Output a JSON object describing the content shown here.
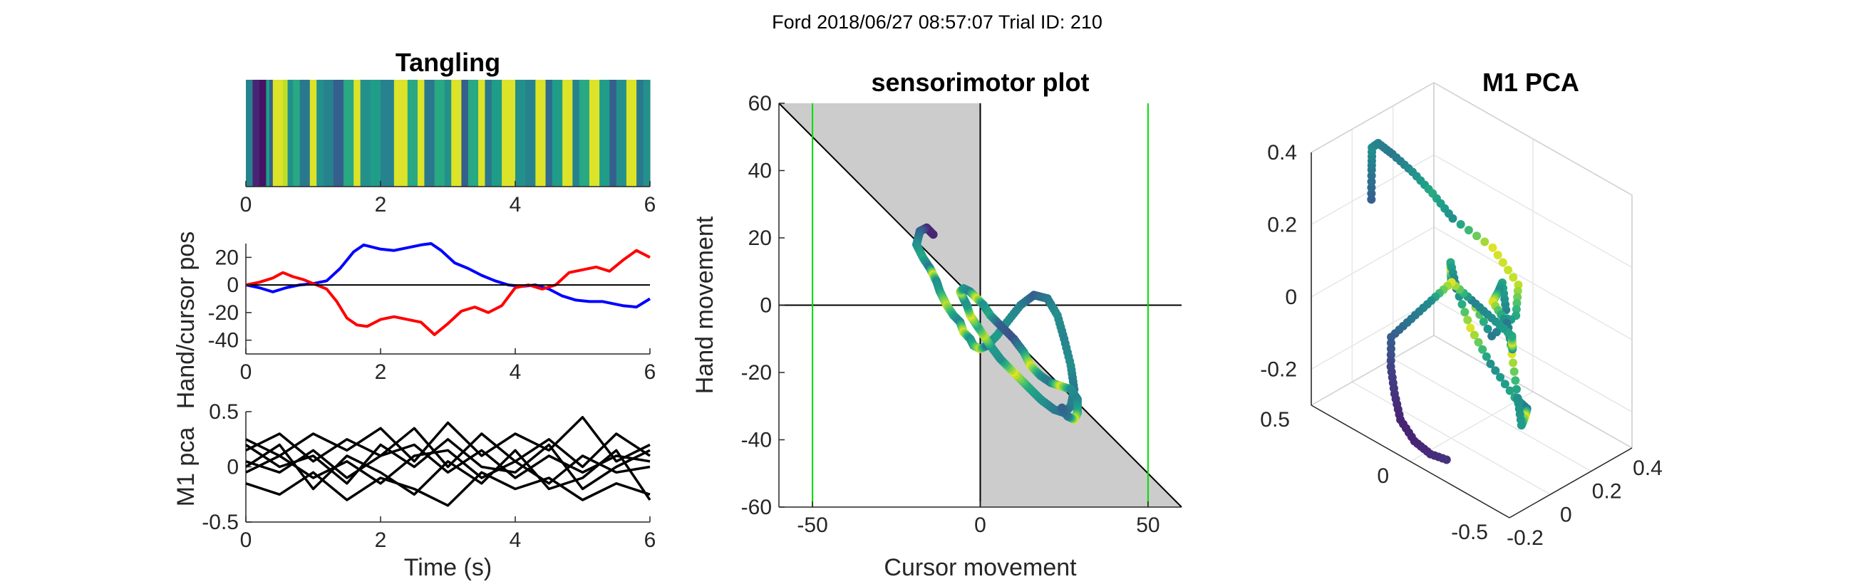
{
  "suptitle": "Ford 2018/06/27 08:57:07 Trial ID: 210",
  "chart_data": [
    {
      "id": "tangling",
      "type": "heatmap",
      "title": "Tangling",
      "xlim": [
        0,
        6
      ],
      "xticks": [
        0,
        2,
        4,
        6
      ],
      "colormap": "viridis",
      "bands_x": [
        0,
        0.1,
        0.2,
        0.3,
        0.35,
        0.4,
        0.55,
        0.62,
        0.7,
        0.8,
        0.95,
        1.05,
        1.15,
        1.3,
        1.45,
        1.6,
        1.7,
        1.85,
        2.0,
        2.2,
        2.4,
        2.55,
        2.65,
        2.8,
        2.95,
        3.05,
        3.2,
        3.3,
        3.45,
        3.55,
        3.65,
        3.8,
        4.0,
        4.15,
        4.3,
        4.45,
        4.55,
        4.7,
        4.85,
        4.95,
        5.1,
        5.25,
        5.4,
        5.5,
        5.65,
        5.8,
        5.9
      ],
      "band_values": [
        0.45,
        0.1,
        0.05,
        0.55,
        0.3,
        0.95,
        0.9,
        0.5,
        0.6,
        0.4,
        0.95,
        0.5,
        0.45,
        0.3,
        0.6,
        0.95,
        0.5,
        0.55,
        0.45,
        0.95,
        0.6,
        0.95,
        0.4,
        0.6,
        0.5,
        0.95,
        0.3,
        0.6,
        0.95,
        0.4,
        0.55,
        0.95,
        0.5,
        0.45,
        0.95,
        0.35,
        0.55,
        0.95,
        0.45,
        0.6,
        0.95,
        0.55,
        0.3,
        0.5,
        0.95,
        0.4,
        0.5
      ]
    },
    {
      "id": "hand-cursor",
      "type": "line",
      "title": "",
      "ylabel": "Hand/cursor pos",
      "xlim": [
        0,
        6
      ],
      "ylim": [
        -50,
        30
      ],
      "xticks": [
        0,
        2,
        4,
        6
      ],
      "yticks": [
        20,
        0,
        -20,
        -40
      ],
      "series": [
        {
          "color": "#0000ff",
          "x": [
            0,
            0.2,
            0.4,
            0.6,
            0.8,
            1.0,
            1.2,
            1.4,
            1.6,
            1.75,
            2.0,
            2.2,
            2.4,
            2.6,
            2.75,
            2.9,
            3.1,
            3.3,
            3.5,
            3.7,
            3.9,
            4.1,
            4.3,
            4.5,
            4.7,
            4.9,
            5.1,
            5.3,
            5.5,
            5.6,
            5.8,
            6.0
          ],
          "y": [
            0,
            -2,
            -5,
            -2,
            0,
            1,
            3,
            12,
            24,
            29,
            26,
            25,
            27,
            29,
            30,
            25,
            16,
            12,
            7,
            3,
            0,
            -1,
            0,
            -3,
            -8,
            -11,
            -12,
            -12,
            -14,
            -15,
            -16,
            -10
          ]
        },
        {
          "color": "#ff0000",
          "x": [
            0,
            0.2,
            0.4,
            0.55,
            0.7,
            0.85,
            1.0,
            1.2,
            1.35,
            1.5,
            1.65,
            1.8,
            2.0,
            2.2,
            2.4,
            2.6,
            2.8,
            3.0,
            3.2,
            3.4,
            3.6,
            3.8,
            4.0,
            4.2,
            4.4,
            4.6,
            4.8,
            5.0,
            5.2,
            5.4,
            5.6,
            5.8,
            6.0
          ],
          "y": [
            0,
            2,
            5,
            9,
            6,
            4,
            1,
            -3,
            -12,
            -24,
            -29,
            -30,
            -25,
            -23,
            -25,
            -27,
            -36,
            -28,
            -19,
            -16,
            -20,
            -15,
            -2,
            0,
            -3,
            0,
            9,
            11,
            13,
            10,
            18,
            25,
            20
          ]
        },
        {
          "color": "#000000",
          "x": [
            0,
            6
          ],
          "y": [
            0,
            0
          ]
        }
      ]
    },
    {
      "id": "m1-pca",
      "type": "line",
      "title": "",
      "xlabel": "Time (s)",
      "ylabel": "M1 pca",
      "xlim": [
        0,
        6
      ],
      "ylim": [
        -0.5,
        0.5
      ],
      "xticks": [
        0,
        2,
        4,
        6
      ],
      "yticks": [
        0.5,
        0,
        -0.5
      ],
      "series": [
        {
          "color": "#000000",
          "x": [
            0,
            0.5,
            1.0,
            1.5,
            2.0,
            2.5,
            3.0,
            3.5,
            4.0,
            4.5,
            5.0,
            5.5,
            6.0
          ],
          "y": [
            0.25,
            0.1,
            0.3,
            0.15,
            0.35,
            0.05,
            0.4,
            0.1,
            0.3,
            0.15,
            0.45,
            0.05,
            0.2
          ]
        },
        {
          "color": "#000000",
          "x": [
            0,
            0.5,
            1.0,
            1.5,
            2.0,
            2.5,
            3.0,
            3.5,
            4.0,
            4.5,
            5.0,
            5.5,
            6.0
          ],
          "y": [
            0.15,
            0.3,
            0.05,
            0.25,
            0.1,
            0.35,
            0.0,
            0.3,
            0.05,
            0.25,
            0.0,
            0.3,
            0.1
          ]
        },
        {
          "color": "#000000",
          "x": [
            0,
            0.5,
            1.0,
            1.5,
            2.0,
            2.5,
            3.0,
            3.5,
            4.0,
            4.5,
            5.0,
            5.5,
            6.0
          ],
          "y": [
            0.05,
            -0.05,
            0.15,
            -0.1,
            0.1,
            0.2,
            -0.05,
            0.15,
            -0.1,
            0.1,
            -0.05,
            0.1,
            0.05
          ]
        },
        {
          "color": "#000000",
          "x": [
            0,
            0.5,
            1.0,
            1.5,
            2.0,
            2.5,
            3.0,
            3.5,
            4.0,
            4.5,
            5.0,
            5.5,
            6.0
          ],
          "y": [
            -0.05,
            0.1,
            -0.1,
            0.05,
            -0.15,
            0.1,
            0.15,
            -0.1,
            0.05,
            -0.15,
            0.1,
            -0.05,
            0.0
          ]
        },
        {
          "color": "#000000",
          "x": [
            0,
            0.5,
            1.0,
            1.5,
            2.0,
            2.5,
            3.0,
            3.5,
            4.0,
            4.5,
            5.0,
            5.5,
            6.0
          ],
          "y": [
            -0.15,
            -0.25,
            -0.05,
            -0.3,
            -0.1,
            -0.2,
            -0.35,
            -0.05,
            -0.2,
            -0.1,
            -0.3,
            -0.15,
            -0.25
          ]
        },
        {
          "color": "#000000",
          "x": [
            0,
            0.5,
            1.0,
            1.5,
            2.0,
            2.5,
            3.0,
            3.5,
            4.0,
            4.5,
            5.0,
            5.5,
            6.0
          ],
          "y": [
            0.0,
            0.2,
            -0.2,
            0.1,
            -0.05,
            -0.25,
            0.05,
            -0.15,
            0.15,
            -0.2,
            -0.1,
            0.15,
            -0.3
          ]
        },
        {
          "color": "#000000",
          "x": [
            0,
            0.5,
            1.0,
            1.5,
            2.0,
            2.5,
            3.0,
            3.5,
            4.0,
            4.5,
            5.0,
            5.5,
            6.0
          ],
          "y": [
            0.2,
            0.0,
            0.1,
            -0.15,
            0.2,
            0.0,
            0.25,
            0.0,
            -0.05,
            0.2,
            -0.2,
            0.0,
            0.15
          ]
        }
      ]
    },
    {
      "id": "sensorimotor",
      "type": "scatter",
      "title": "sensorimotor plot",
      "xlabel": "Cursor movement",
      "ylabel": "Hand movement",
      "xlim": [
        -60,
        60
      ],
      "ylim": [
        -60,
        60
      ],
      "xticks": [
        -50,
        0,
        50
      ],
      "yticks": [
        60,
        40,
        20,
        0,
        -20,
        -40,
        -60
      ],
      "shaded_regions": [
        {
          "polygon": [
            [
              -60,
              60
            ],
            [
              0,
              60
            ],
            [
              0,
              0
            ]
          ],
          "color": "#cccccc"
        },
        {
          "polygon": [
            [
              0,
              0
            ],
            [
              0,
              -60
            ],
            [
              60,
              -60
            ]
          ],
          "color": "#cccccc"
        }
      ],
      "reference_lines": [
        {
          "x": [
            -60,
            60
          ],
          "y": [
            60,
            -60
          ],
          "color": "#000000"
        },
        {
          "x": [
            -60,
            60
          ],
          "y": [
            0,
            0
          ],
          "color": "#000000"
        },
        {
          "x": [
            0,
            0
          ],
          "y": [
            -60,
            60
          ],
          "color": "#000000"
        },
        {
          "x": [
            -50,
            -50
          ],
          "y": [
            -60,
            60
          ],
          "color": "#00dd00"
        },
        {
          "x": [
            50,
            50
          ],
          "y": [
            -60,
            60
          ],
          "color": "#00dd00"
        }
      ],
      "path_x": [
        -14,
        -16,
        -18,
        -19,
        -17,
        -15,
        -14,
        -13,
        -12,
        -10,
        -8,
        -6,
        -5,
        -3,
        -2,
        0,
        2,
        5,
        8,
        12,
        16,
        20,
        23,
        25,
        27,
        28,
        27,
        25,
        22,
        18,
        14,
        10,
        6,
        3,
        1,
        -1,
        -3,
        -4,
        -5,
        -6,
        -5,
        -3,
        -1,
        1,
        3,
        6,
        10,
        13,
        15,
        18,
        21,
        24,
        27,
        29,
        29,
        28,
        26,
        24
      ],
      "path_y": [
        21,
        23,
        22,
        18,
        14,
        11,
        9,
        7,
        4,
        0,
        -3,
        -5,
        -8,
        -10,
        -12,
        -13,
        -12,
        -9,
        -5,
        0,
        3,
        2,
        -3,
        -10,
        -18,
        -25,
        -30,
        -32,
        -31,
        -28,
        -24,
        -20,
        -16,
        -12,
        -9,
        -6,
        -3,
        0,
        2,
        4,
        5,
        4,
        2,
        0,
        -3,
        -6,
        -10,
        -14,
        -18,
        -21,
        -23,
        -24,
        -25,
        -28,
        -32,
        -34,
        -33,
        -30
      ],
      "path_color_values": [
        0.1,
        0.1,
        0.3,
        0.5,
        0.6,
        0.4,
        0.95,
        0.5,
        0.55,
        0.9,
        0.6,
        0.45,
        0.95,
        0.5,
        0.6,
        0.9,
        0.4,
        0.55,
        0.5,
        0.45,
        0.3,
        0.4,
        0.5,
        0.45,
        0.5,
        0.4,
        0.45,
        0.35,
        0.4,
        0.5,
        0.6,
        0.95,
        0.5,
        0.55,
        0.9,
        0.6,
        0.95,
        0.55,
        0.5,
        0.9,
        0.55,
        0.45,
        0.95,
        0.5,
        0.6,
        0.3,
        0.25,
        0.5,
        0.95,
        0.5,
        0.4,
        0.95,
        0.5,
        0.45,
        0.6,
        0.95,
        0.4,
        0.3
      ]
    },
    {
      "id": "m1-pca-3d",
      "type": "scatter",
      "title": "M1 PCA",
      "xlim": [
        -0.2,
        0.4
      ],
      "ylim": [
        -0.5,
        0.5
      ],
      "zlim": [
        -0.3,
        0.4
      ],
      "xticks": [
        -0.2,
        0,
        0.2,
        0.4
      ],
      "yticks": [
        -0.5,
        0,
        0.5
      ],
      "zticks": [
        0.4,
        0.2,
        0,
        -0.2
      ],
      "grid": true,
      "points_x": [
        -0.1,
        -0.05,
        0.0,
        0.05,
        0.1,
        0.15,
        0.2,
        0.25,
        0.3,
        0.28,
        0.22,
        0.15,
        0.1,
        0.05,
        0.0,
        -0.05,
        -0.1,
        -0.12,
        -0.1,
        -0.05,
        0.02,
        0.08,
        0.12,
        0.15,
        0.18,
        0.2,
        0.22,
        0.25,
        0.28,
        0.3,
        0.32,
        0.3,
        0.25,
        0.2,
        0.15,
        0.1,
        0.05,
        0.0,
        -0.05,
        -0.1,
        -0.15,
        -0.18,
        -0.2,
        -0.18,
        -0.15,
        -0.1
      ],
      "points_y": [
        0.3,
        0.35,
        0.4,
        0.42,
        0.4,
        0.35,
        0.3,
        0.25,
        0.1,
        -0.05,
        -0.1,
        -0.05,
        0.0,
        0.05,
        0.0,
        -0.05,
        -0.1,
        -0.15,
        -0.2,
        -0.25,
        -0.3,
        -0.3,
        -0.25,
        -0.2,
        -0.15,
        -0.1,
        -0.05,
        0.0,
        0.05,
        0.1,
        0.05,
        0.0,
        -0.05,
        -0.1,
        -0.05,
        0.0,
        0.05,
        0.1,
        0.15,
        0.2,
        0.15,
        0.1,
        0.05,
        0.0,
        -0.05,
        -0.1
      ],
      "points_z": [
        0.3,
        0.35,
        0.38,
        0.37,
        0.33,
        0.28,
        0.22,
        0.15,
        0.1,
        0.05,
        0.0,
        -0.05,
        0.05,
        0.1,
        0.15,
        0.2,
        0.25,
        0.2,
        0.1,
        0.0,
        -0.1,
        -0.15,
        -0.2,
        -0.25,
        -0.2,
        -0.1,
        0.0,
        0.05,
        0.0,
        -0.05,
        -0.1,
        -0.15,
        -0.1,
        -0.05,
        0.0,
        0.05,
        0.1,
        0.05,
        0.0,
        -0.05,
        -0.1,
        -0.15,
        -0.2,
        -0.25,
        -0.28,
        -0.3
      ],
      "points_color_values": [
        0.3,
        0.4,
        0.5,
        0.45,
        0.4,
        0.5,
        0.6,
        0.5,
        0.95,
        0.9,
        0.6,
        0.4,
        0.95,
        0.5,
        0.55,
        0.95,
        0.6,
        0.4,
        0.95,
        0.5,
        0.6,
        0.4,
        0.95,
        0.55,
        0.5,
        0.95,
        0.45,
        0.6,
        0.5,
        0.95,
        0.4,
        0.5,
        0.95,
        0.6,
        0.5,
        0.45,
        0.95,
        0.5,
        0.4,
        0.3,
        0.2,
        0.15,
        0.1,
        0.1,
        0.12,
        0.15
      ]
    }
  ]
}
